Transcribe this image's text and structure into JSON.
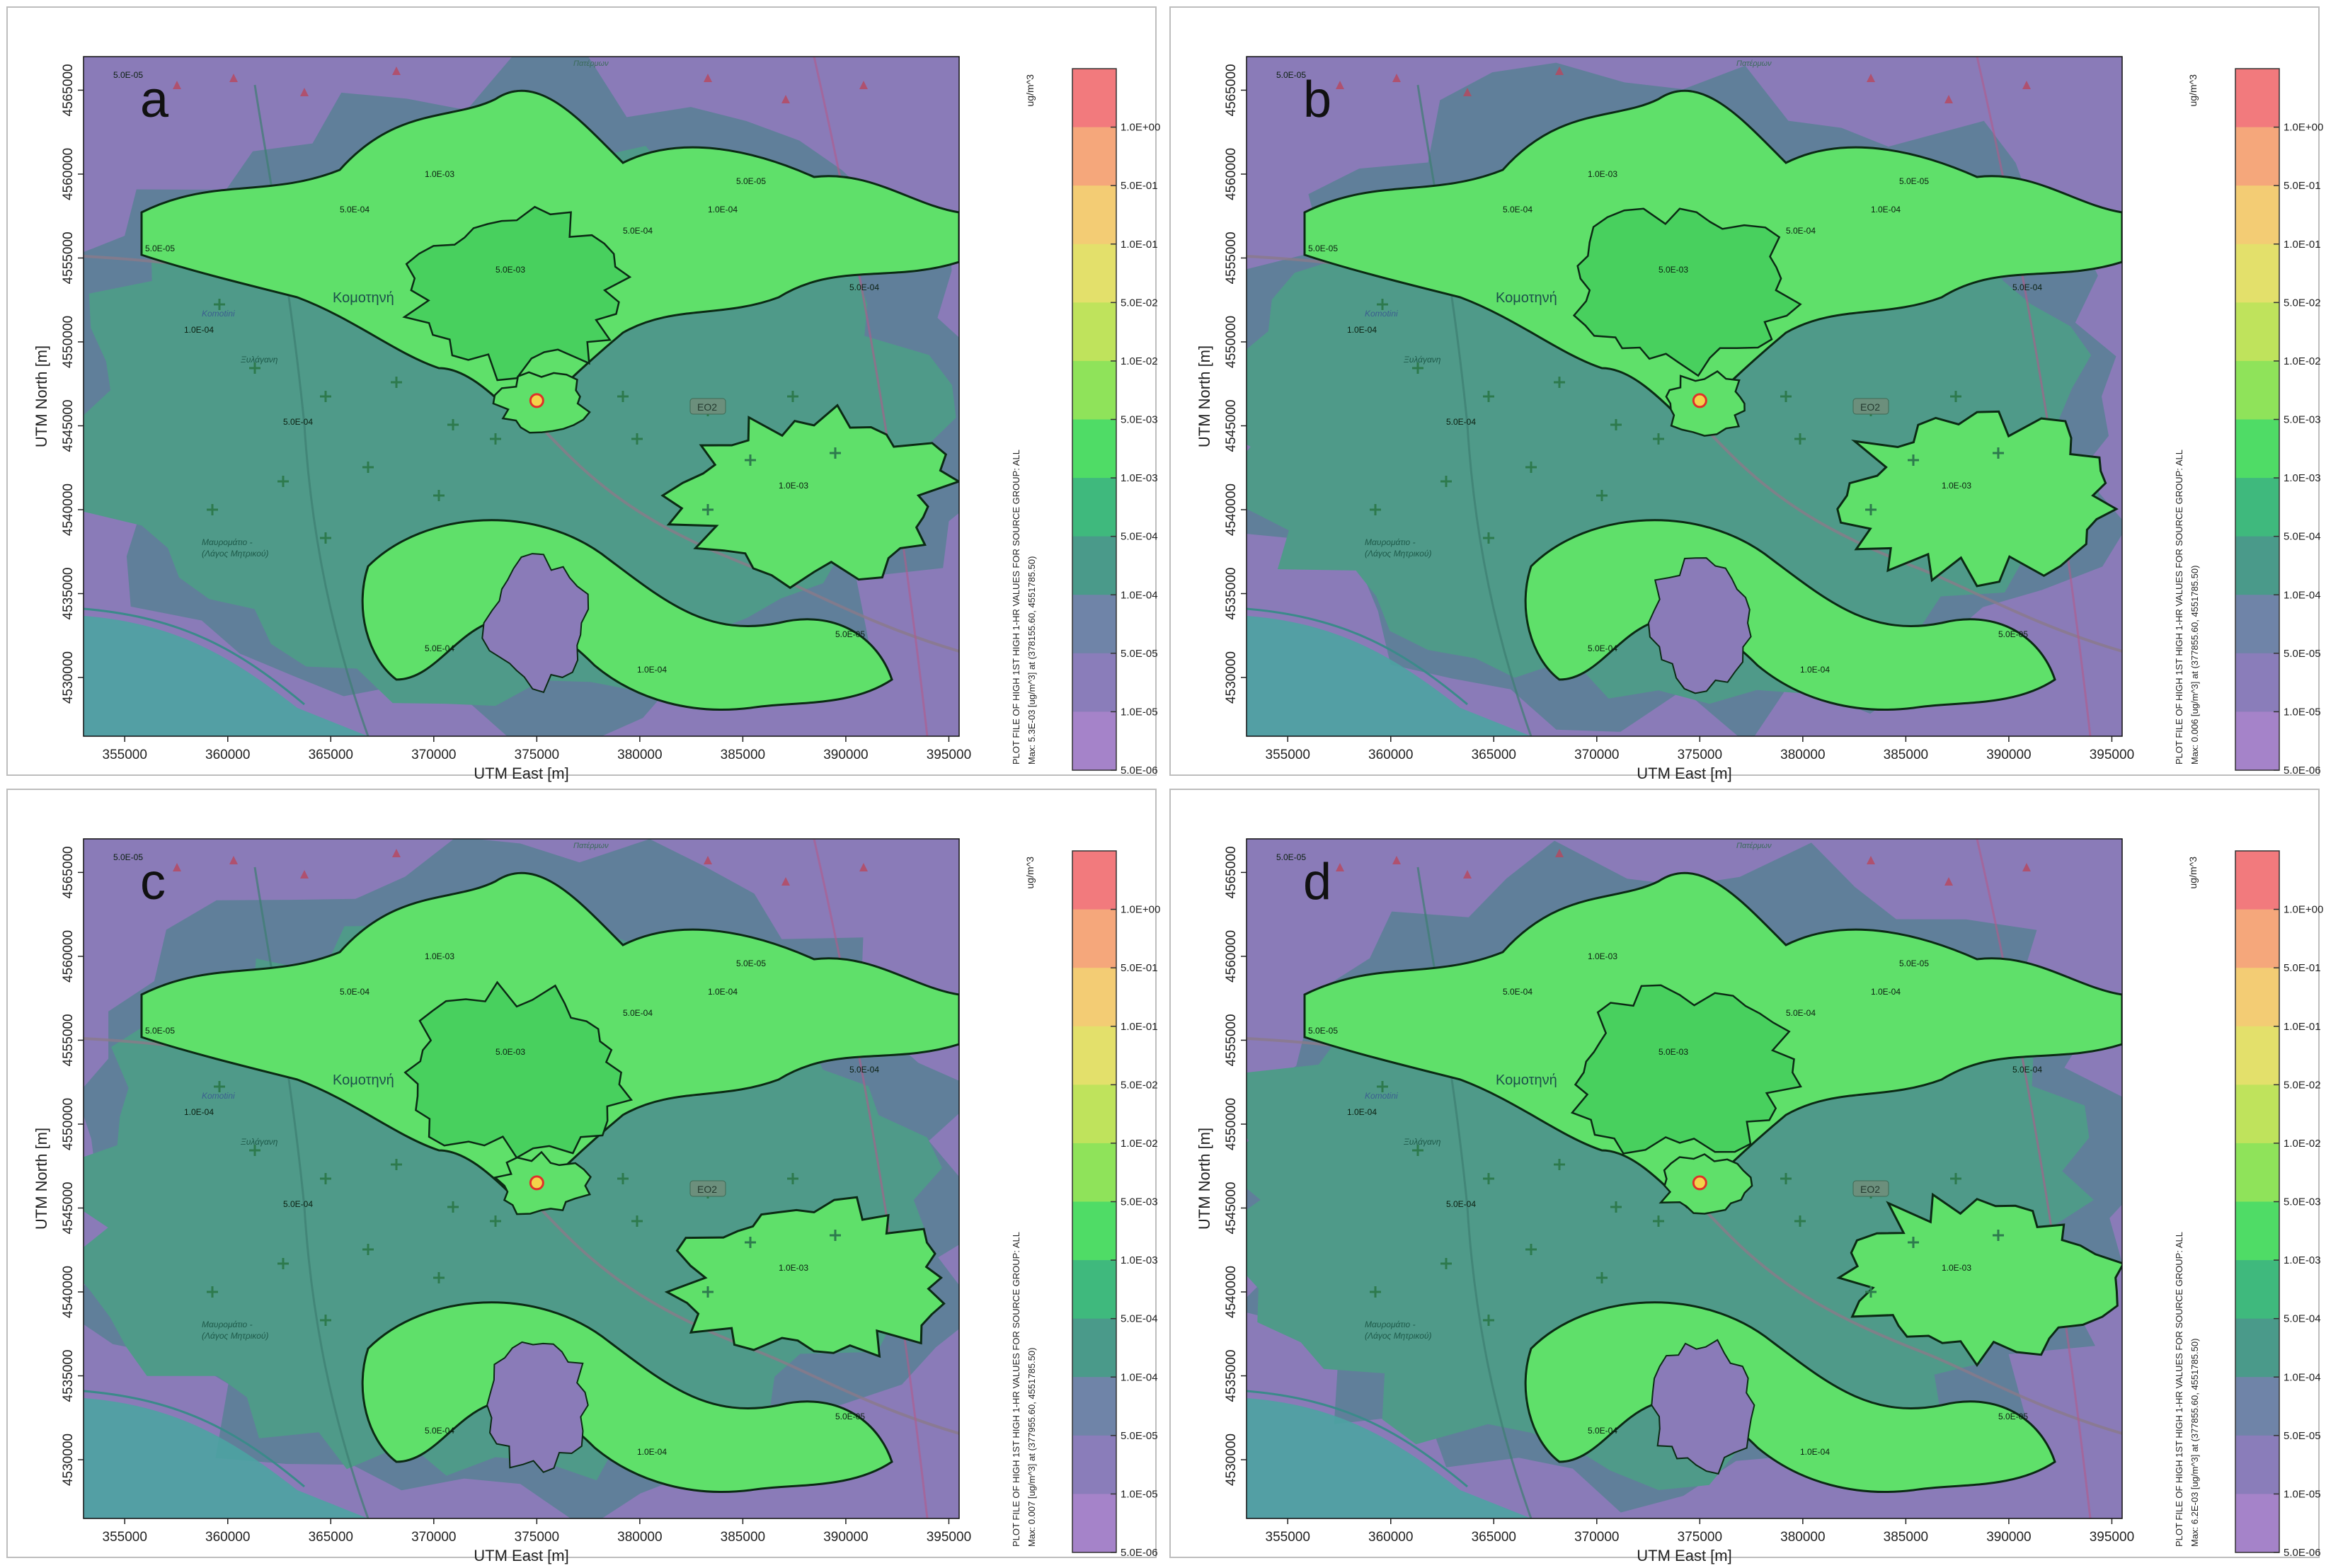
{
  "panels": [
    {
      "letter": "a",
      "max_label": "Max:  5.3E-03  [ug/m^3]  at  (378155.60, 4551785.50)",
      "source_xy": [
        375000,
        4546500
      ]
    },
    {
      "letter": "b",
      "max_label": "Max:  0.006  [ug/m^3]  at  (377855.60, 4551785.50)",
      "source_xy": [
        375000,
        4546500
      ]
    },
    {
      "letter": "c",
      "max_label": "Max:  0.007  [ug/m^3]  at  (377955.60, 4551785.50)",
      "source_xy": [
        375000,
        4546500
      ]
    },
    {
      "letter": "d",
      "max_label": "Max:  6.2E-03  [ug/m^3]  at  (377855.60, 4551785.50)",
      "source_xy": [
        375000,
        4546500
      ]
    }
  ],
  "axes": {
    "x_label": "UTM East [m]",
    "y_label": "UTM North [m]",
    "x_ticks": [
      355000,
      360000,
      365000,
      370000,
      375000,
      380000,
      385000,
      390000,
      395000
    ],
    "y_ticks": [
      4530000,
      4535000,
      4540000,
      4545000,
      4550000,
      4555000,
      4560000,
      4565000
    ],
    "x_range": [
      353000,
      395500
    ],
    "y_range": [
      4526500,
      4567000
    ]
  },
  "colorbar": {
    "unit": "ug/m^3",
    "title": "PLOT FILE OF HIGH 1ST HIGH 1-HR VALUES FOR SOURCE GROUP: ALL",
    "levels": [
      "1.0E+00",
      "5.0E-01",
      "1.0E-01",
      "5.0E-02",
      "1.0E-02",
      "5.0E-03",
      "1.0E-03",
      "5.0E-04",
      "1.0E-04",
      "5.0E-05",
      "1.0E-05",
      "5.0E-06"
    ],
    "colors": [
      "#f27a7d",
      "#f5a77b",
      "#f3cc74",
      "#e3e06b",
      "#bfe35c",
      "#8fe35a",
      "#4fdc66",
      "#3fb97d",
      "#4a9a8a",
      "#6f84a8",
      "#8a7dba",
      "#a583c9"
    ]
  },
  "map_labels": {
    "city": "Κομοτηνή",
    "city_small": "Komotini",
    "village_1": "Ξυλάγανη",
    "village_2": "Μαυρομάτιο -",
    "village_2b": "(Λάγος Μητρικού)",
    "road": "ΕΟ2",
    "top_place": "Πατέρμων"
  },
  "contour_labels": [
    "5.0E-05",
    "1.0E-04",
    "5.0E-04",
    "1.0E-03",
    "5.0E-03"
  ],
  "colors": {
    "background_purple": "#8a7bb8",
    "mid_teal": "#4f9a89",
    "bright_green": "#5fe06a",
    "source_marker": "#e0302a",
    "receptor_cross": "#2d7a4d"
  }
}
